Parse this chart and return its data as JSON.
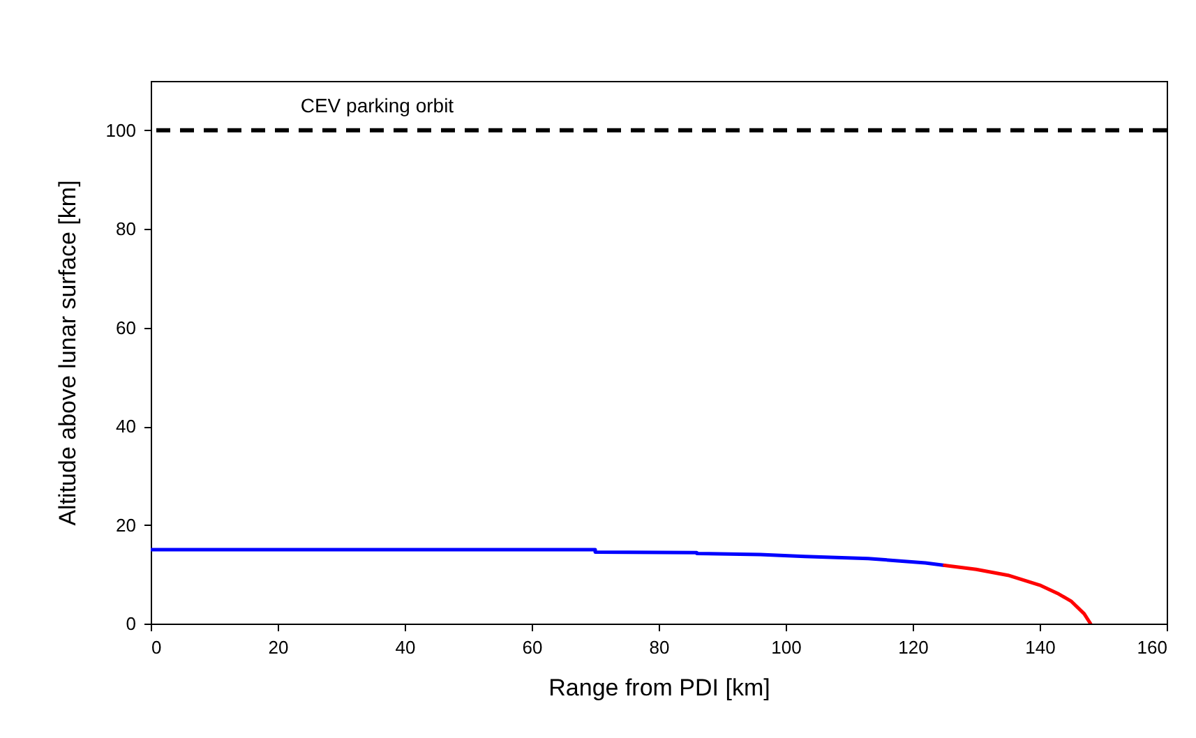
{
  "chart_data": {
    "type": "line",
    "xlabel": "Range from PDI [km]",
    "ylabel": "Altitude above lunar surface [km]",
    "xlim": [
      0,
      160
    ],
    "xticks": [
      0,
      20,
      40,
      60,
      80,
      100,
      120,
      140,
      160
    ],
    "ylim": [
      0,
      110
    ],
    "yticks": [
      0,
      20,
      40,
      60,
      80,
      100
    ],
    "grid": false,
    "line_style": "solid",
    "series": [
      {
        "color": "#0000ff",
        "x": [
          0,
          70,
          70,
          86,
          86,
          96,
          103,
          113,
          118,
          122,
          125
        ],
        "values": [
          15,
          15,
          14.5,
          14.4,
          14.2,
          14.0,
          13.6,
          13.2,
          12.7,
          12.3,
          11.8
        ]
      },
      {
        "color": "#ff0000",
        "x": [
          125,
          130,
          135,
          140,
          143,
          145,
          147,
          148
        ],
        "values": [
          11.8,
          11,
          9.8,
          7.8,
          6,
          4.5,
          2,
          0
        ]
      }
    ],
    "ref_lines": [
      {
        "axis": "y",
        "value": 100,
        "label": "CEV parking orbit",
        "color": "#000000",
        "line_style": "dashed"
      }
    ]
  }
}
